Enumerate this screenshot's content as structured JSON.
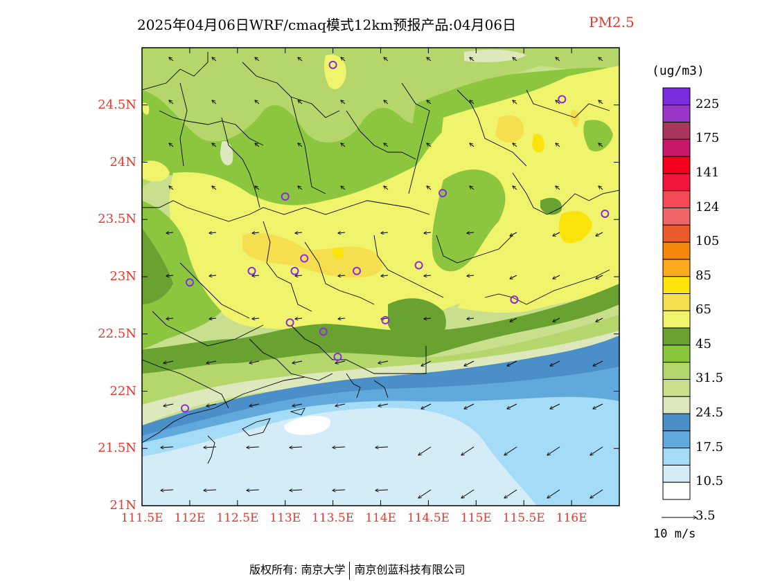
{
  "title": {
    "main": "2025年04月06日WRF/cmaq模式12km预报产品:04月06日",
    "pollutant": "PM2.5"
  },
  "map": {
    "lat_ticks": [
      "24.5N",
      "24N",
      "23.5N",
      "23N",
      "22.5N",
      "22N",
      "21.5N",
      "21N"
    ],
    "lon_ticks": [
      "111.5E",
      "112E",
      "112.5E",
      "113E",
      "113.5E",
      "114E",
      "114.5E",
      "115E",
      "115.5E",
      "116E"
    ],
    "extent": {
      "lon_min": 111.5,
      "lon_max": 116.5,
      "lat_min": 21.0,
      "lat_max": 25.0
    },
    "tick_color": "#e8372d"
  },
  "colorbar": {
    "unit": "(ug/m3)",
    "labels": [
      "225",
      "175",
      "141",
      "124",
      "105",
      "85",
      "65",
      "45",
      "31.5",
      "24.5",
      "17.5",
      "10.5",
      "3.5"
    ],
    "colors": [
      "#7b2be0",
      "#9a35c9",
      "#a8355a",
      "#c8186b",
      "#f2001c",
      "#f2143d",
      "#f34a55",
      "#f06565",
      "#ea5b2c",
      "#f5870c",
      "#fba91f",
      "#fbe30b",
      "#f5df4f",
      "#f0f36c",
      "#69a230",
      "#8cc63f",
      "#b5d66b",
      "#c8df8e",
      "#dde9bd",
      "#4a8fc8",
      "#61a8dc",
      "#a4dbf6",
      "#d3ecf8",
      "#ffffff"
    ]
  },
  "wind": {
    "legend_label": "10 m/s"
  },
  "stations": [
    {
      "lon": 113.5,
      "lat": 24.85
    },
    {
      "lon": 115.9,
      "lat": 24.55
    },
    {
      "lon": 113.0,
      "lat": 23.7
    },
    {
      "lon": 114.65,
      "lat": 23.73
    },
    {
      "lon": 116.35,
      "lat": 23.55
    },
    {
      "lon": 112.65,
      "lat": 23.05
    },
    {
      "lon": 113.1,
      "lat": 23.05
    },
    {
      "lon": 113.2,
      "lat": 23.16
    },
    {
      "lon": 113.75,
      "lat": 23.05
    },
    {
      "lon": 114.4,
      "lat": 23.1
    },
    {
      "lon": 112.0,
      "lat": 22.95
    },
    {
      "lon": 115.4,
      "lat": 22.8
    },
    {
      "lon": 113.05,
      "lat": 22.6
    },
    {
      "lon": 113.4,
      "lat": 22.52
    },
    {
      "lon": 114.05,
      "lat": 22.62
    },
    {
      "lon": 113.55,
      "lat": 22.3
    },
    {
      "lon": 111.95,
      "lat": 21.85
    }
  ],
  "footer": {
    "copyright_owner": "版权所有: 南京大学",
    "company": "南京创蓝科技有限公司"
  }
}
